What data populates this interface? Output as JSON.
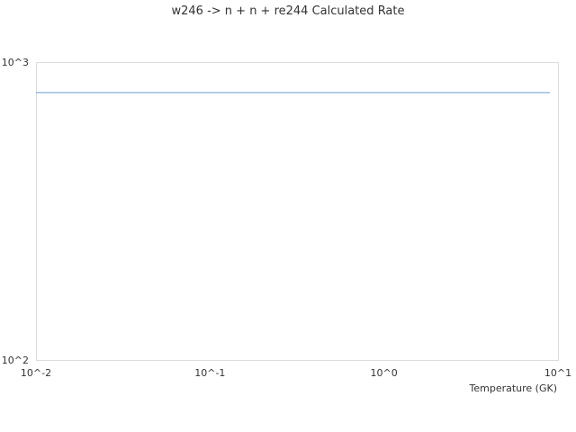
{
  "chart_data": {
    "type": "line",
    "title": "w246 -> n + n + re244 Calculated Rate",
    "xlabel": "Temperature (GK)",
    "ylabel": "",
    "x_scale": "log",
    "y_scale": "log",
    "xlim": [
      0.01,
      10
    ],
    "ylim": [
      100,
      1000
    ],
    "x_ticks": [
      "10^-2",
      "10^-1",
      "10^0",
      "10^1"
    ],
    "y_ticks": [
      "10^3",
      "10^2"
    ],
    "grid": false,
    "series": [
      {
        "color": "#6a9fd4",
        "x": [
          0.01,
          9.0
        ],
        "y": [
          790,
          790
        ]
      }
    ]
  }
}
